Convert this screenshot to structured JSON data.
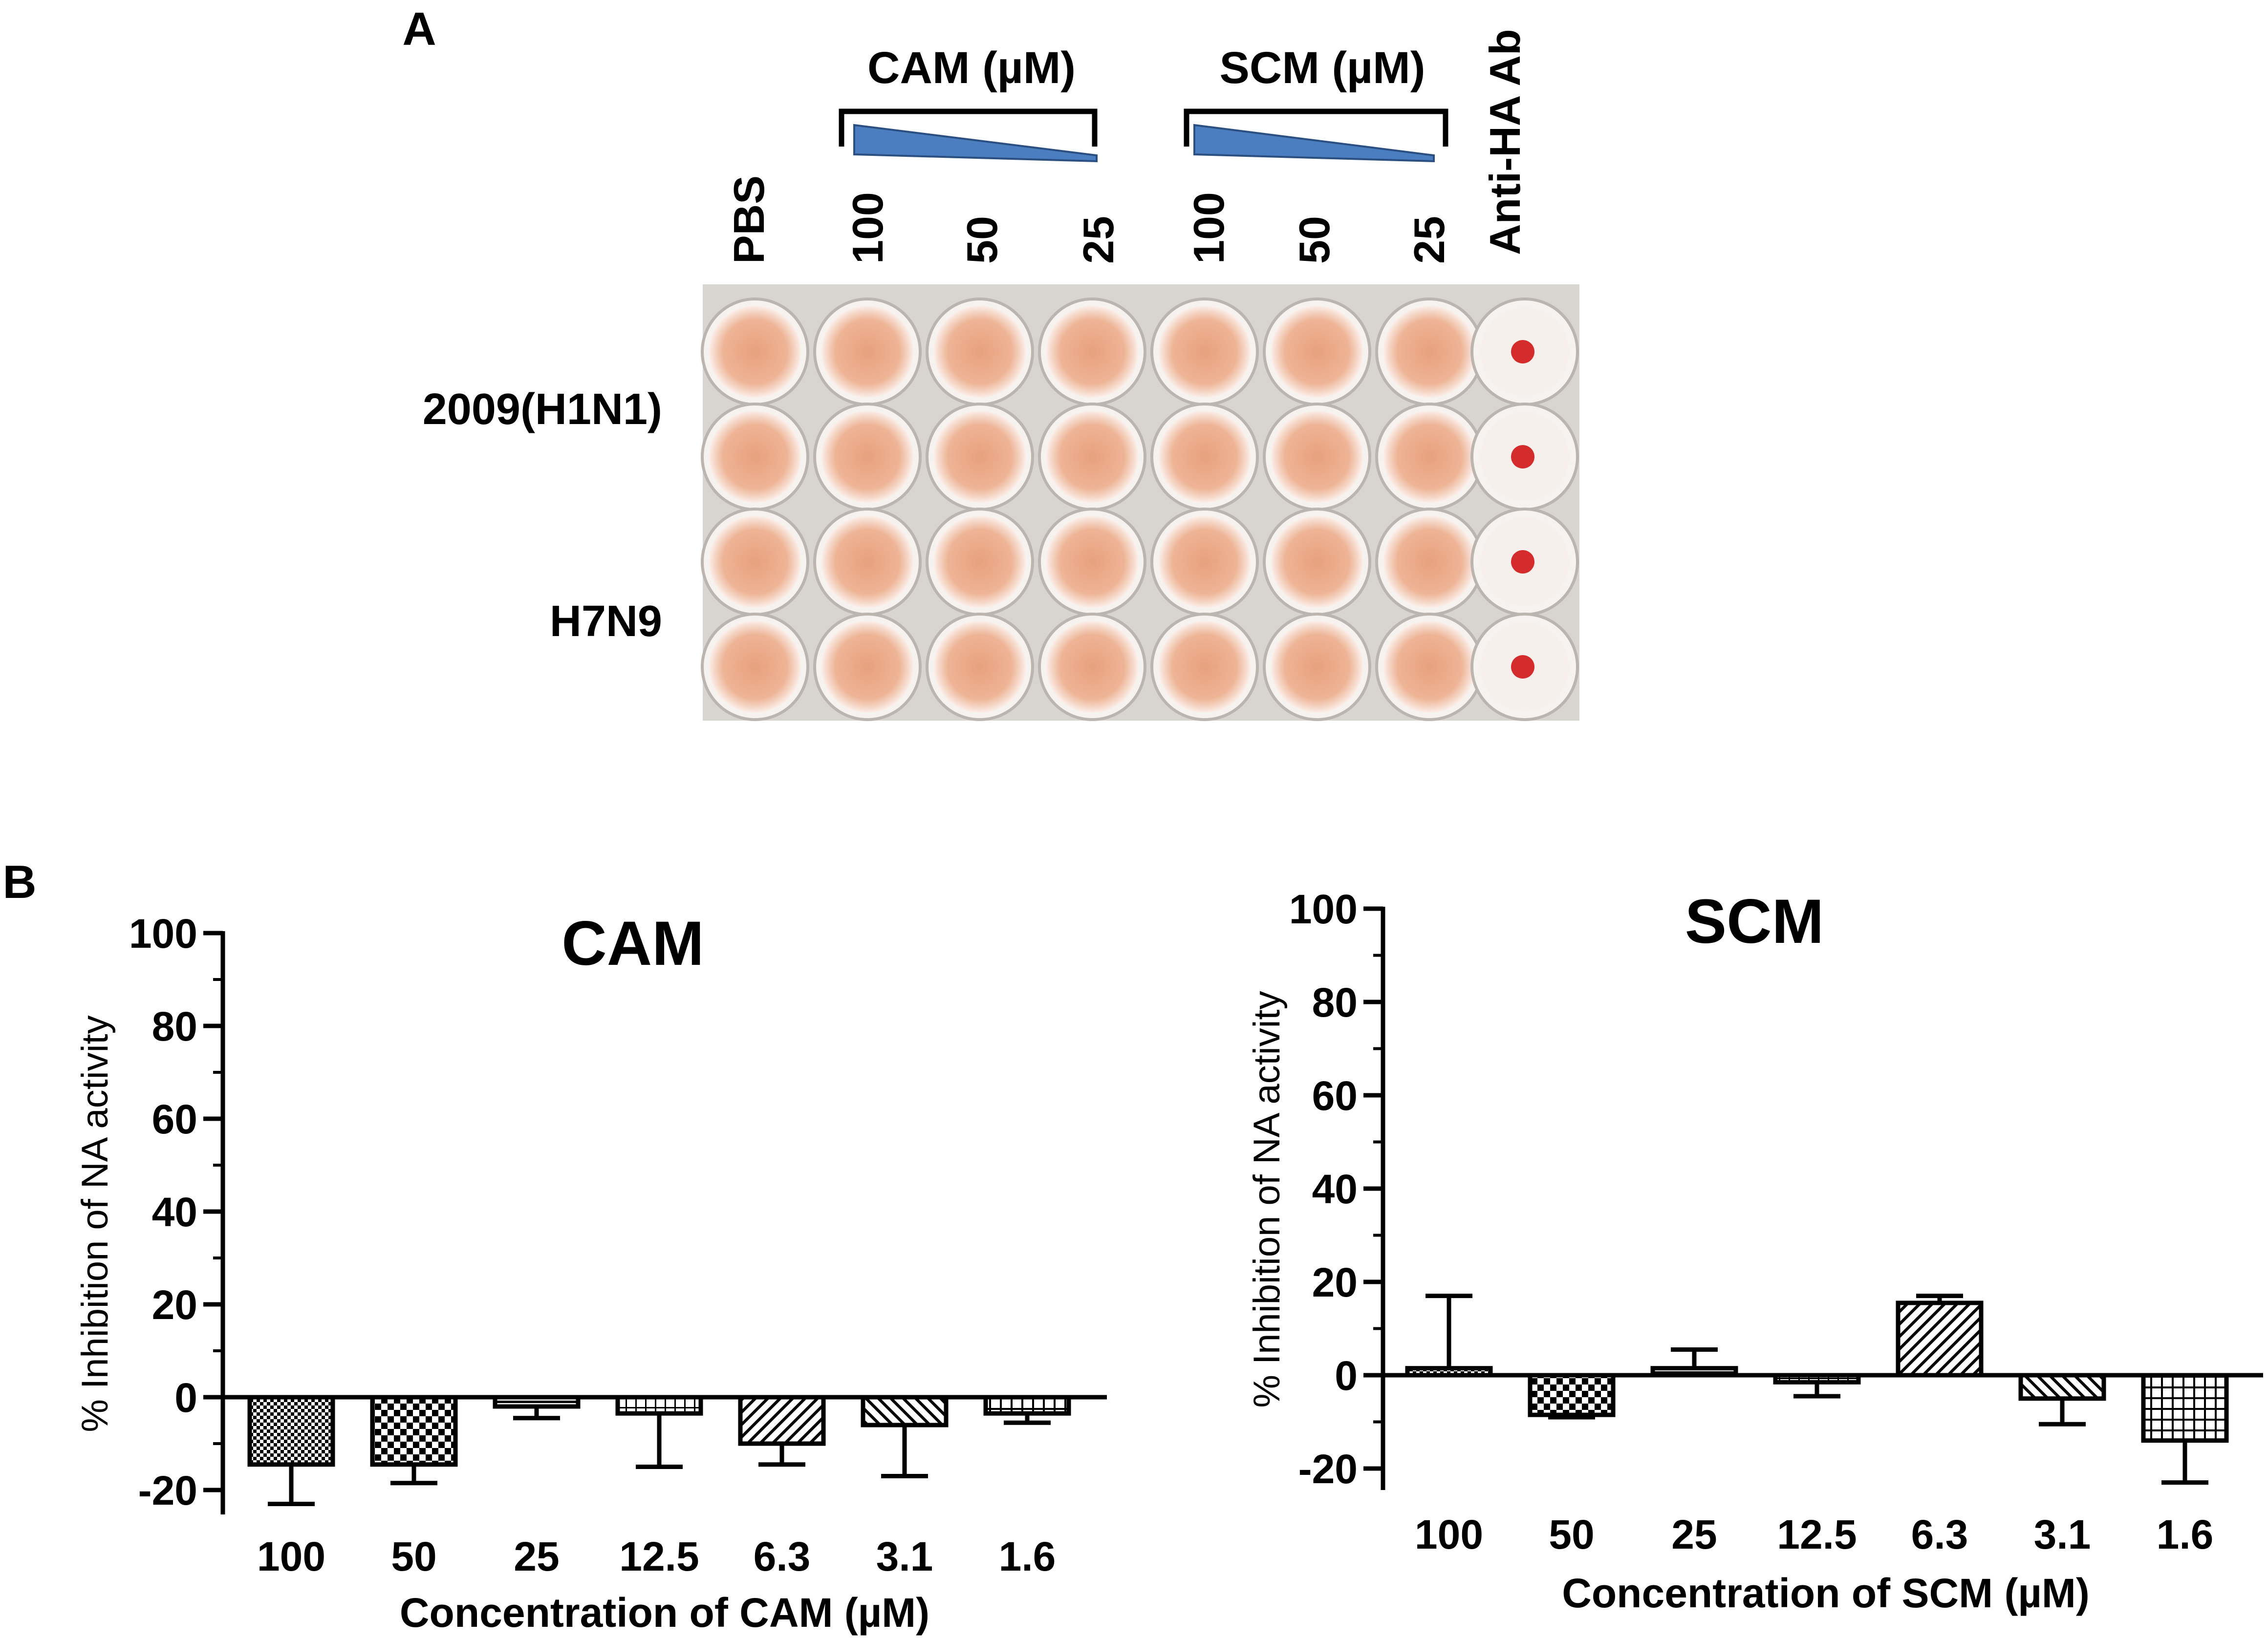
{
  "panel_a": {
    "label": "A",
    "cam_header": "CAM (µM)",
    "scm_header": "SCM (µM)",
    "columns": [
      "PBS",
      "100",
      "50",
      "25",
      "100",
      "50",
      "25",
      "Anti-HA Ab"
    ],
    "rows": [
      "2009(H1N1)",
      "H7N9"
    ],
    "colors": {
      "well": "#f0b898",
      "pellet": "#d42c2c",
      "plate": "#d8d4d0",
      "wedge": "#4b7ec0"
    }
  },
  "panel_b": {
    "label": "B"
  },
  "chart_data": [
    {
      "type": "bar",
      "title": "CAM",
      "xlabel": "Concentration of CAM (µM)",
      "ylabel": "% Inhibition of NA activity",
      "categories": [
        "100",
        "50",
        "25",
        "12.5",
        "6.3",
        "3.1",
        "1.6"
      ],
      "values": [
        -14.5,
        -14.5,
        -2,
        -3.5,
        -10,
        -6,
        -3.5
      ],
      "errors": [
        8.5,
        4,
        2.5,
        11.5,
        4.5,
        11,
        2
      ],
      "yticks": [
        -20,
        0,
        20,
        40,
        60,
        80,
        100
      ],
      "ylim": [
        -25,
        100
      ],
      "grid": false
    },
    {
      "type": "bar",
      "title": "SCM",
      "xlabel": "Concentration of SCM (µM)",
      "ylabel": "% Inhibition of NA activity",
      "categories": [
        "100",
        "50",
        "25",
        "12.5",
        "6.3",
        "3.1",
        "1.6"
      ],
      "values": [
        1.5,
        -8.5,
        1.5,
        -1.5,
        15.5,
        -5,
        -14
      ],
      "errors": [
        15.5,
        0.5,
        4,
        3,
        1.5,
        5.5,
        9
      ],
      "yticks": [
        -20,
        0,
        20,
        40,
        60,
        80,
        100
      ],
      "ylim": [
        -25,
        100
      ],
      "grid": false
    }
  ]
}
